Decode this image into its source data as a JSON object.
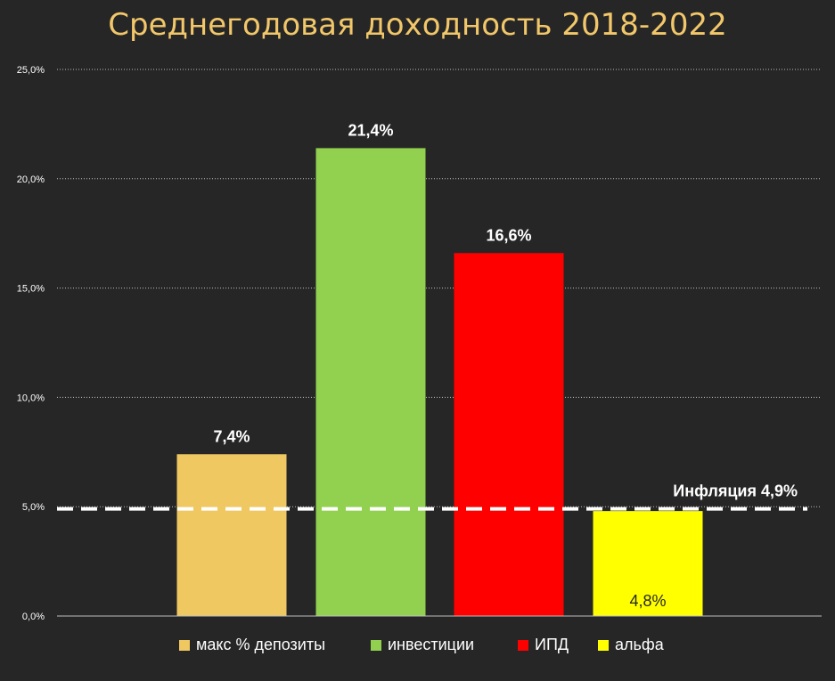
{
  "chart_data": {
    "type": "bar",
    "title": "Среднегодовая доходность 2018-2022",
    "xlabel": "",
    "ylabel": "",
    "ylim": [
      0,
      25
    ],
    "yticks": [
      0,
      5,
      10,
      15,
      20,
      25
    ],
    "ytick_labels": [
      "0,0%",
      "5,0%",
      "10,0%",
      "15,0%",
      "20,0%",
      "25,0%"
    ],
    "grid": true,
    "legend_position": "bottom",
    "series": [
      {
        "name": "макс % депозиты",
        "value": 7.4,
        "label": "7,4%",
        "color": "#F0C862"
      },
      {
        "name": "инвестиции",
        "value": 21.4,
        "label": "21,4%",
        "color": "#92D050"
      },
      {
        "name": "ИПД",
        "value": 16.6,
        "label": "16,6%",
        "color": "#FF0000"
      },
      {
        "name": "альфа",
        "value": 4.8,
        "label": "4,8%",
        "color": "#FFFF00"
      }
    ],
    "reference_line": {
      "value": 4.9,
      "label": "Инфляция 4,9%",
      "style": "dashed",
      "color": "#FFFFFF"
    }
  }
}
